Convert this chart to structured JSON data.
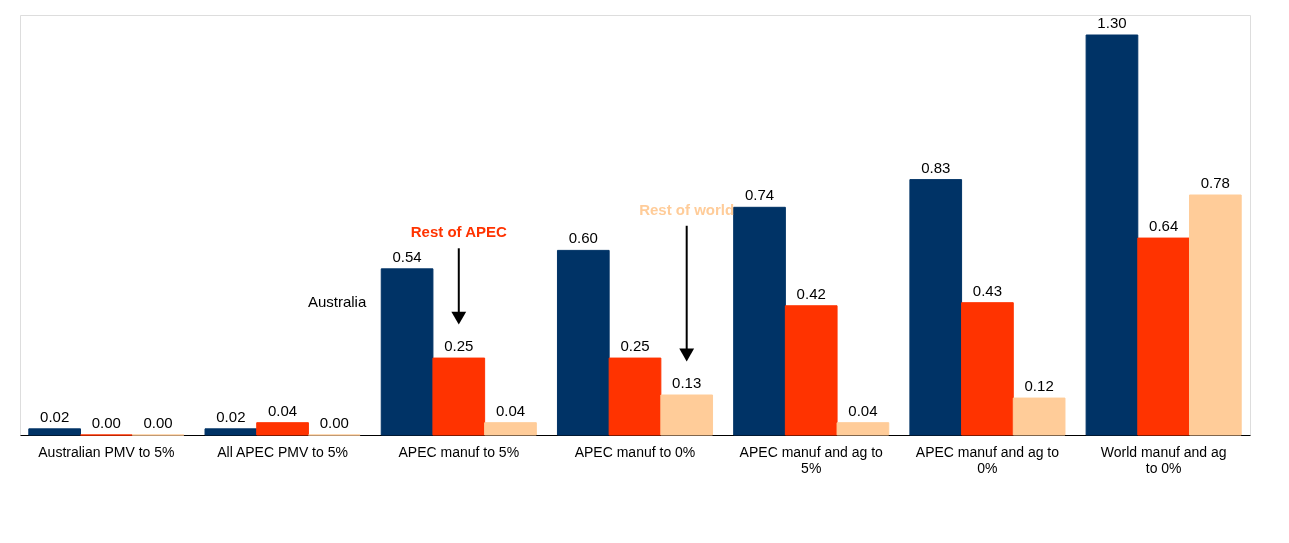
{
  "chart_data": {
    "type": "bar",
    "categories": [
      "Australian PMV to 5%",
      "All APEC PMV to 5%",
      "APEC manuf to 5%",
      "APEC manuf to 0%",
      "APEC manuf and ag to 5%",
      "APEC manuf and ag to 0%",
      "World manuf and ag to 0%"
    ],
    "series": [
      {
        "name": "Australia",
        "color": "#003366",
        "values": [
          0.02,
          0.02,
          0.54,
          0.6,
          0.74,
          0.83,
          1.3
        ],
        "value_labels": [
          "0.02",
          "0.02",
          "0.54",
          "0.60",
          "0.74",
          "0.83",
          "1.30"
        ]
      },
      {
        "name": "Rest of APEC",
        "color": "#ff3300",
        "values": [
          0.0,
          0.04,
          0.25,
          0.25,
          0.42,
          0.43,
          0.64
        ],
        "value_labels": [
          "0.00",
          "0.04",
          "0.25",
          "0.25",
          "0.42",
          "0.43",
          "0.64"
        ]
      },
      {
        "name": "Rest of world",
        "color": "#ffcc99",
        "values": [
          0.0,
          0.0,
          0.04,
          0.13,
          0.04,
          0.12,
          0.78
        ],
        "value_labels": [
          "0.00",
          "0.00",
          "0.04",
          "0.13",
          "0.04",
          "0.12",
          "0.78"
        ]
      }
    ],
    "grid": false,
    "legend": false
  }
}
